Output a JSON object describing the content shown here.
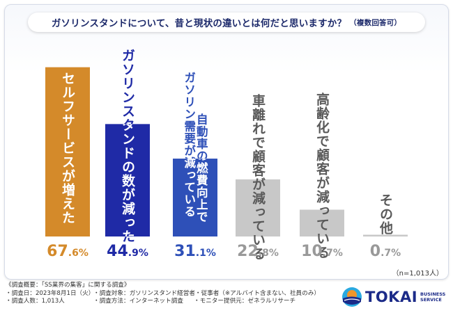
{
  "title": "ガソリンスタンドについて、昔と現状の違いとは何だと思いますか？",
  "title_note": "（複数回答可）",
  "chart_data": {
    "type": "bar",
    "categories": [
      "セルフサービスが増えた",
      "ガソリンスタンドの数が減った",
      "自動車の燃費向上でガソリン需要が減っている",
      "車離れで顧客が減っている",
      "高齢化で顧客が減っている",
      "その他"
    ],
    "label_columns": [
      [
        "セルフサービスが増えた"
      ],
      [
        "ガソリンスタンドの数が減った"
      ],
      [
        "自動車の燃費向上で",
        "ガソリン需要が減っている"
      ],
      [
        "車離れで顧客が減っている"
      ],
      [
        "高齢化で顧客が減っている"
      ],
      [
        "その他"
      ]
    ],
    "values": [
      67.6,
      44.9,
      31.1,
      22.8,
      10.7,
      0.7
    ],
    "value_labels": [
      {
        "int": "67",
        "dec": ".6%"
      },
      {
        "int": "44",
        "dec": ".9%"
      },
      {
        "int": "31",
        "dec": ".1%"
      },
      {
        "int": "22",
        "dec": ".8%"
      },
      {
        "int": "10",
        "dec": ".7%"
      },
      {
        "int": "0",
        "dec": ".7%"
      }
    ],
    "colors": [
      "#d48a2a",
      "#1f2aa6",
      "#2e50b8",
      "#c8c8c8",
      "#c8c8c8",
      "#c8c8c8"
    ],
    "label_colors": [
      "#ffffff",
      "#ffffff",
      "#ffffff",
      "#555555",
      "#555555",
      "#555555"
    ],
    "value_colors": [
      "#d48a2a",
      "#1f2aa6",
      "#2e50b8",
      "#999999",
      "#999999",
      "#999999"
    ],
    "ylim": [
      0,
      70
    ]
  },
  "sample_size": "（n=1,013人）",
  "survey": {
    "heading": "《調査概要：「SS業界の集客」に関する調査》",
    "date": "・調査日：2023年8月1日（火）",
    "target": "・調査対象：ガソリンスタンド経営者・従事者（※アルバイト含まない、社員のみ）",
    "respondents": "・調査人数：1,013人",
    "method": "・調査方法：インターネット調査",
    "provider": "・モニター提供元：ゼネラルリサーチ"
  },
  "logo": {
    "brand": "TOKAI",
    "line1": "BUSINESS",
    "line2": "SERVICE",
    "colors": {
      "blue": "#1b2a88",
      "orange": "#f0962a",
      "sky": "#2aa9e0"
    }
  }
}
